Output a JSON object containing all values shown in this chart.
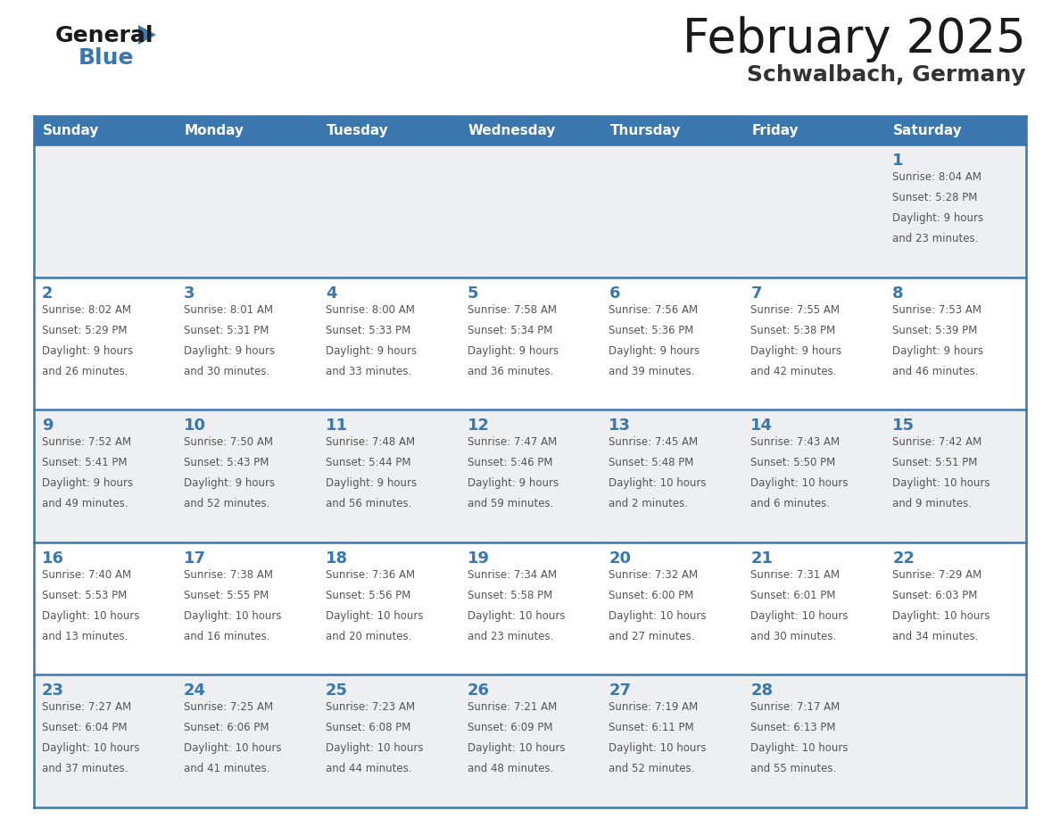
{
  "title": "February 2025",
  "subtitle": "Schwalbach, Germany",
  "header_bg": "#3977ae",
  "header_text_color": "#ffffff",
  "days_of_week": [
    "Sunday",
    "Monday",
    "Tuesday",
    "Wednesday",
    "Thursday",
    "Friday",
    "Saturday"
  ],
  "cell_bg_odd": "#eeeff1",
  "cell_bg_even": "#ffffff",
  "divider_color": "#3977ae",
  "day_number_color": "#3977ae",
  "text_color": "#555555",
  "calendar_data": [
    [
      {
        "day": null,
        "sunrise": null,
        "sunset": null,
        "daylight_line1": null,
        "daylight_line2": null
      },
      {
        "day": null,
        "sunrise": null,
        "sunset": null,
        "daylight_line1": null,
        "daylight_line2": null
      },
      {
        "day": null,
        "sunrise": null,
        "sunset": null,
        "daylight_line1": null,
        "daylight_line2": null
      },
      {
        "day": null,
        "sunrise": null,
        "sunset": null,
        "daylight_line1": null,
        "daylight_line2": null
      },
      {
        "day": null,
        "sunrise": null,
        "sunset": null,
        "daylight_line1": null,
        "daylight_line2": null
      },
      {
        "day": null,
        "sunrise": null,
        "sunset": null,
        "daylight_line1": null,
        "daylight_line2": null
      },
      {
        "day": "1",
        "sunrise": "Sunrise: 8:04 AM",
        "sunset": "Sunset: 5:28 PM",
        "daylight_line1": "Daylight: 9 hours",
        "daylight_line2": "and 23 minutes."
      }
    ],
    [
      {
        "day": "2",
        "sunrise": "Sunrise: 8:02 AM",
        "sunset": "Sunset: 5:29 PM",
        "daylight_line1": "Daylight: 9 hours",
        "daylight_line2": "and 26 minutes."
      },
      {
        "day": "3",
        "sunrise": "Sunrise: 8:01 AM",
        "sunset": "Sunset: 5:31 PM",
        "daylight_line1": "Daylight: 9 hours",
        "daylight_line2": "and 30 minutes."
      },
      {
        "day": "4",
        "sunrise": "Sunrise: 8:00 AM",
        "sunset": "Sunset: 5:33 PM",
        "daylight_line1": "Daylight: 9 hours",
        "daylight_line2": "and 33 minutes."
      },
      {
        "day": "5",
        "sunrise": "Sunrise: 7:58 AM",
        "sunset": "Sunset: 5:34 PM",
        "daylight_line1": "Daylight: 9 hours",
        "daylight_line2": "and 36 minutes."
      },
      {
        "day": "6",
        "sunrise": "Sunrise: 7:56 AM",
        "sunset": "Sunset: 5:36 PM",
        "daylight_line1": "Daylight: 9 hours",
        "daylight_line2": "and 39 minutes."
      },
      {
        "day": "7",
        "sunrise": "Sunrise: 7:55 AM",
        "sunset": "Sunset: 5:38 PM",
        "daylight_line1": "Daylight: 9 hours",
        "daylight_line2": "and 42 minutes."
      },
      {
        "day": "8",
        "sunrise": "Sunrise: 7:53 AM",
        "sunset": "Sunset: 5:39 PM",
        "daylight_line1": "Daylight: 9 hours",
        "daylight_line2": "and 46 minutes."
      }
    ],
    [
      {
        "day": "9",
        "sunrise": "Sunrise: 7:52 AM",
        "sunset": "Sunset: 5:41 PM",
        "daylight_line1": "Daylight: 9 hours",
        "daylight_line2": "and 49 minutes."
      },
      {
        "day": "10",
        "sunrise": "Sunrise: 7:50 AM",
        "sunset": "Sunset: 5:43 PM",
        "daylight_line1": "Daylight: 9 hours",
        "daylight_line2": "and 52 minutes."
      },
      {
        "day": "11",
        "sunrise": "Sunrise: 7:48 AM",
        "sunset": "Sunset: 5:44 PM",
        "daylight_line1": "Daylight: 9 hours",
        "daylight_line2": "and 56 minutes."
      },
      {
        "day": "12",
        "sunrise": "Sunrise: 7:47 AM",
        "sunset": "Sunset: 5:46 PM",
        "daylight_line1": "Daylight: 9 hours",
        "daylight_line2": "and 59 minutes."
      },
      {
        "day": "13",
        "sunrise": "Sunrise: 7:45 AM",
        "sunset": "Sunset: 5:48 PM",
        "daylight_line1": "Daylight: 10 hours",
        "daylight_line2": "and 2 minutes."
      },
      {
        "day": "14",
        "sunrise": "Sunrise: 7:43 AM",
        "sunset": "Sunset: 5:50 PM",
        "daylight_line1": "Daylight: 10 hours",
        "daylight_line2": "and 6 minutes."
      },
      {
        "day": "15",
        "sunrise": "Sunrise: 7:42 AM",
        "sunset": "Sunset: 5:51 PM",
        "daylight_line1": "Daylight: 10 hours",
        "daylight_line2": "and 9 minutes."
      }
    ],
    [
      {
        "day": "16",
        "sunrise": "Sunrise: 7:40 AM",
        "sunset": "Sunset: 5:53 PM",
        "daylight_line1": "Daylight: 10 hours",
        "daylight_line2": "and 13 minutes."
      },
      {
        "day": "17",
        "sunrise": "Sunrise: 7:38 AM",
        "sunset": "Sunset: 5:55 PM",
        "daylight_line1": "Daylight: 10 hours",
        "daylight_line2": "and 16 minutes."
      },
      {
        "day": "18",
        "sunrise": "Sunrise: 7:36 AM",
        "sunset": "Sunset: 5:56 PM",
        "daylight_line1": "Daylight: 10 hours",
        "daylight_line2": "and 20 minutes."
      },
      {
        "day": "19",
        "sunrise": "Sunrise: 7:34 AM",
        "sunset": "Sunset: 5:58 PM",
        "daylight_line1": "Daylight: 10 hours",
        "daylight_line2": "and 23 minutes."
      },
      {
        "day": "20",
        "sunrise": "Sunrise: 7:32 AM",
        "sunset": "Sunset: 6:00 PM",
        "daylight_line1": "Daylight: 10 hours",
        "daylight_line2": "and 27 minutes."
      },
      {
        "day": "21",
        "sunrise": "Sunrise: 7:31 AM",
        "sunset": "Sunset: 6:01 PM",
        "daylight_line1": "Daylight: 10 hours",
        "daylight_line2": "and 30 minutes."
      },
      {
        "day": "22",
        "sunrise": "Sunrise: 7:29 AM",
        "sunset": "Sunset: 6:03 PM",
        "daylight_line1": "Daylight: 10 hours",
        "daylight_line2": "and 34 minutes."
      }
    ],
    [
      {
        "day": "23",
        "sunrise": "Sunrise: 7:27 AM",
        "sunset": "Sunset: 6:04 PM",
        "daylight_line1": "Daylight: 10 hours",
        "daylight_line2": "and 37 minutes."
      },
      {
        "day": "24",
        "sunrise": "Sunrise: 7:25 AM",
        "sunset": "Sunset: 6:06 PM",
        "daylight_line1": "Daylight: 10 hours",
        "daylight_line2": "and 41 minutes."
      },
      {
        "day": "25",
        "sunrise": "Sunrise: 7:23 AM",
        "sunset": "Sunset: 6:08 PM",
        "daylight_line1": "Daylight: 10 hours",
        "daylight_line2": "and 44 minutes."
      },
      {
        "day": "26",
        "sunrise": "Sunrise: 7:21 AM",
        "sunset": "Sunset: 6:09 PM",
        "daylight_line1": "Daylight: 10 hours",
        "daylight_line2": "and 48 minutes."
      },
      {
        "day": "27",
        "sunrise": "Sunrise: 7:19 AM",
        "sunset": "Sunset: 6:11 PM",
        "daylight_line1": "Daylight: 10 hours",
        "daylight_line2": "and 52 minutes."
      },
      {
        "day": "28",
        "sunrise": "Sunrise: 7:17 AM",
        "sunset": "Sunset: 6:13 PM",
        "daylight_line1": "Daylight: 10 hours",
        "daylight_line2": "and 55 minutes."
      },
      {
        "day": null,
        "sunrise": null,
        "sunset": null,
        "daylight_line1": null,
        "daylight_line2": null
      }
    ]
  ],
  "logo_general_color": "#1a1a1a",
  "logo_blue_color": "#3977ae",
  "logo_triangle_color": "#3977ae",
  "title_color": "#1a1a1a",
  "subtitle_color": "#333333"
}
